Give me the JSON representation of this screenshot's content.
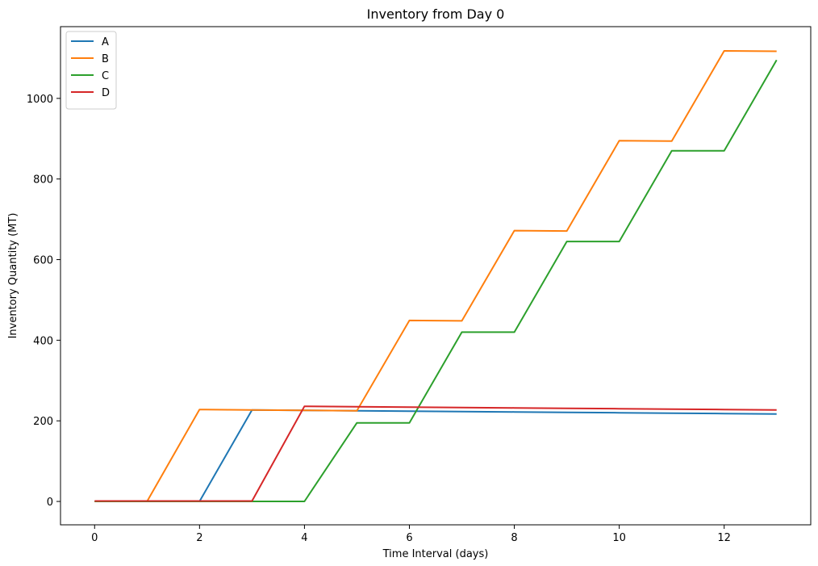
{
  "chart_data": {
    "type": "line",
    "title": "Inventory from Day 0",
    "xlabel": "Time Interval (days)",
    "ylabel": "Inventory Quantity (MT)",
    "xlim": [
      -0.65,
      13.65
    ],
    "ylim": [
      -58,
      1178
    ],
    "xticks": [
      0,
      2,
      4,
      6,
      8,
      10,
      12
    ],
    "yticks": [
      0,
      200,
      400,
      600,
      800,
      1000
    ],
    "grid": false,
    "legend_position": "top-left",
    "x": [
      0,
      1,
      2,
      3,
      4,
      5,
      6,
      7,
      8,
      9,
      10,
      11,
      12,
      13
    ],
    "series": [
      {
        "name": "A",
        "color": "#1f77b4",
        "values": [
          0,
          0,
          0,
          227,
          226,
          225,
          224,
          223,
          222,
          221,
          220,
          219,
          218,
          217
        ]
      },
      {
        "name": "B",
        "color": "#ff7f0e",
        "values": [
          0,
          0,
          228,
          227,
          226,
          225,
          449,
          448,
          672,
          671,
          895,
          894,
          1118,
          1117
        ]
      },
      {
        "name": "C",
        "color": "#2ca02c",
        "values": [
          0,
          0,
          0,
          0,
          0,
          195,
          195,
          420,
          420,
          645,
          645,
          870,
          870,
          1095
        ]
      },
      {
        "name": "D",
        "color": "#d62728",
        "values": [
          1,
          1,
          1,
          1,
          236,
          235,
          234,
          233,
          232,
          231,
          230,
          229,
          228,
          227
        ]
      }
    ]
  }
}
